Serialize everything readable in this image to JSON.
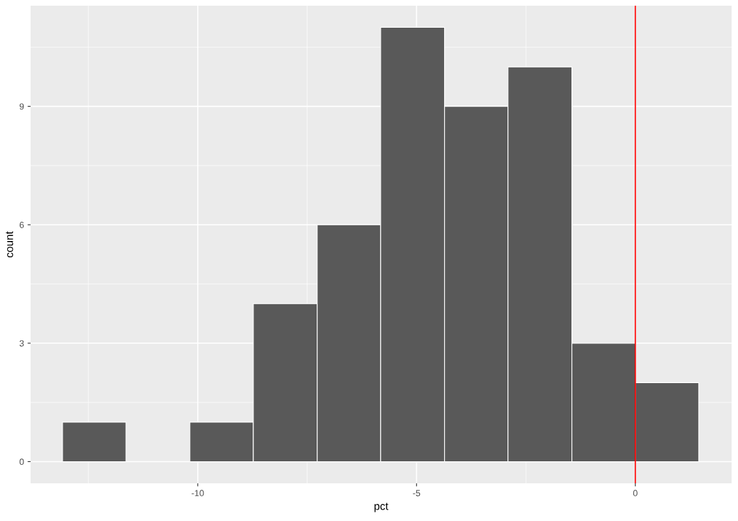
{
  "chart_data": {
    "type": "histogram",
    "xlabel": "pct",
    "ylabel": "count",
    "bins": [
      -13.09,
      -11.64,
      -10.18,
      -8.73,
      -7.27,
      -5.82,
      -4.36,
      -2.91,
      -1.45,
      0,
      1.45
    ],
    "values": [
      1,
      0,
      1,
      4,
      6,
      11,
      9,
      10,
      3,
      2
    ],
    "color": "#595959",
    "xlim": [
      -13.82,
      2.2
    ],
    "xticks": [
      -10,
      -5,
      0
    ],
    "ylim": [
      -0.55,
      11.55
    ],
    "yticks": [
      0,
      3,
      6,
      9
    ],
    "grid": true,
    "legend": false,
    "ref_lines": [
      {
        "axis": "x",
        "value": 0,
        "color": "#ff0000"
      }
    ]
  }
}
